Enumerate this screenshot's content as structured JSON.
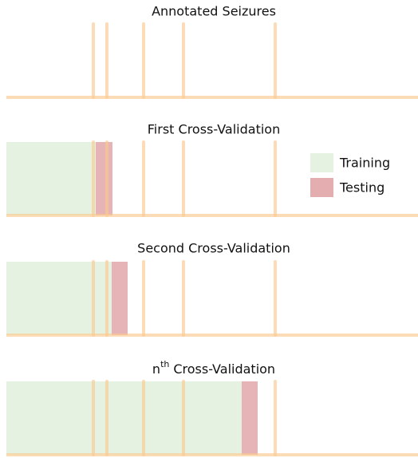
{
  "panels": [
    {
      "title": "Annotated Seizures"
    },
    {
      "title": "First Cross-Validation"
    },
    {
      "title": "Second Cross-Validation"
    },
    {
      "title": {
        "base": "n",
        "sup": "th",
        "rest": "Cross-Validation"
      }
    }
  ],
  "legend": {
    "items": [
      "Training",
      "Testing"
    ]
  }
}
